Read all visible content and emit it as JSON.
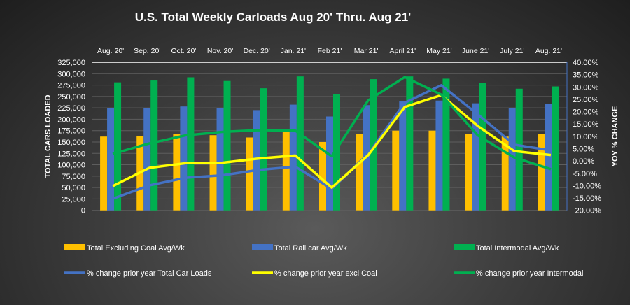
{
  "chart_data": {
    "type": "bar",
    "title": "U.S. Total Weekly Carloads Aug 20' Thru. Aug 21'",
    "ylabel": "TOTAL CARS LOADED",
    "y2label": "YOY % CHANGE",
    "ylim": [
      0,
      325000
    ],
    "y2lim": [
      -20,
      40
    ],
    "yticks": [
      "0",
      "25,000",
      "50,000",
      "75,000",
      "100,000",
      "125,000",
      "150,000",
      "175,000",
      "200,000",
      "225,000",
      "250,000",
      "275,000",
      "300,000",
      "325,000"
    ],
    "y2ticks": [
      "-20.00%",
      "-15.00%",
      "-10.00%",
      "-5.00%",
      "0.00%",
      "5.00%",
      "10.00%",
      "15.00%",
      "20.00%",
      "25.00%",
      "30.00%",
      "35.00%",
      "40.00%"
    ],
    "grid": true,
    "legend_position": "bottom",
    "categories": [
      "Aug. 20'",
      "Sep. 20'",
      "Oct. 20'",
      "Nov. 20'",
      "Dec. 20'",
      "Jan. 21'",
      "Feb 21'",
      "Mar 21'",
      "April 21'",
      "May 21'",
      "June 21'",
      "July 21'",
      "Aug. 21'"
    ],
    "bar_series": [
      {
        "name": "Total Excluding Coal Avg/Wk",
        "color": "#ffc000",
        "values": [
          162000,
          163000,
          168000,
          165000,
          160000,
          172000,
          150000,
          168000,
          175000,
          175000,
          168000,
          162000,
          167000
        ]
      },
      {
        "name": "Total Rail car Avg/Wk",
        "color": "#4472c4",
        "values": [
          224000,
          224000,
          228000,
          225000,
          220000,
          232000,
          206000,
          231000,
          239000,
          241000,
          235000,
          225000,
          234000
        ]
      },
      {
        "name": "Total Intermodal Avg/Wk",
        "color": "#00b050",
        "values": [
          281000,
          285000,
          292000,
          284000,
          268000,
          294000,
          255000,
          288000,
          294000,
          289000,
          279000,
          267000,
          272000
        ]
      }
    ],
    "line_series": [
      {
        "name": "% change prior year Total Car Loads",
        "color": "#4472c4",
        "axis": "right",
        "values": [
          -15.3,
          -9.9,
          -6.8,
          -5.8,
          -3.6,
          -2.3,
          -11.3,
          2.9,
          23.6,
          30.7,
          18.9,
          6.6,
          4.3
        ]
      },
      {
        "name": "% change prior year excl Coal",
        "color": "#ffff00",
        "axis": "right",
        "values": [
          -10.2,
          -2.8,
          -0.9,
          -0.7,
          1.0,
          2.2,
          -10.8,
          2.4,
          21.9,
          26.7,
          14.2,
          4.0,
          2.4
        ]
      },
      {
        "name": "% change prior year Intermodal",
        "color": "#00b050",
        "axis": "right",
        "values": [
          2.9,
          7.1,
          10.4,
          11.8,
          12.5,
          12.3,
          1.9,
          24.6,
          34.0,
          26.9,
          10.4,
          1.4,
          -3.3
        ]
      }
    ]
  }
}
